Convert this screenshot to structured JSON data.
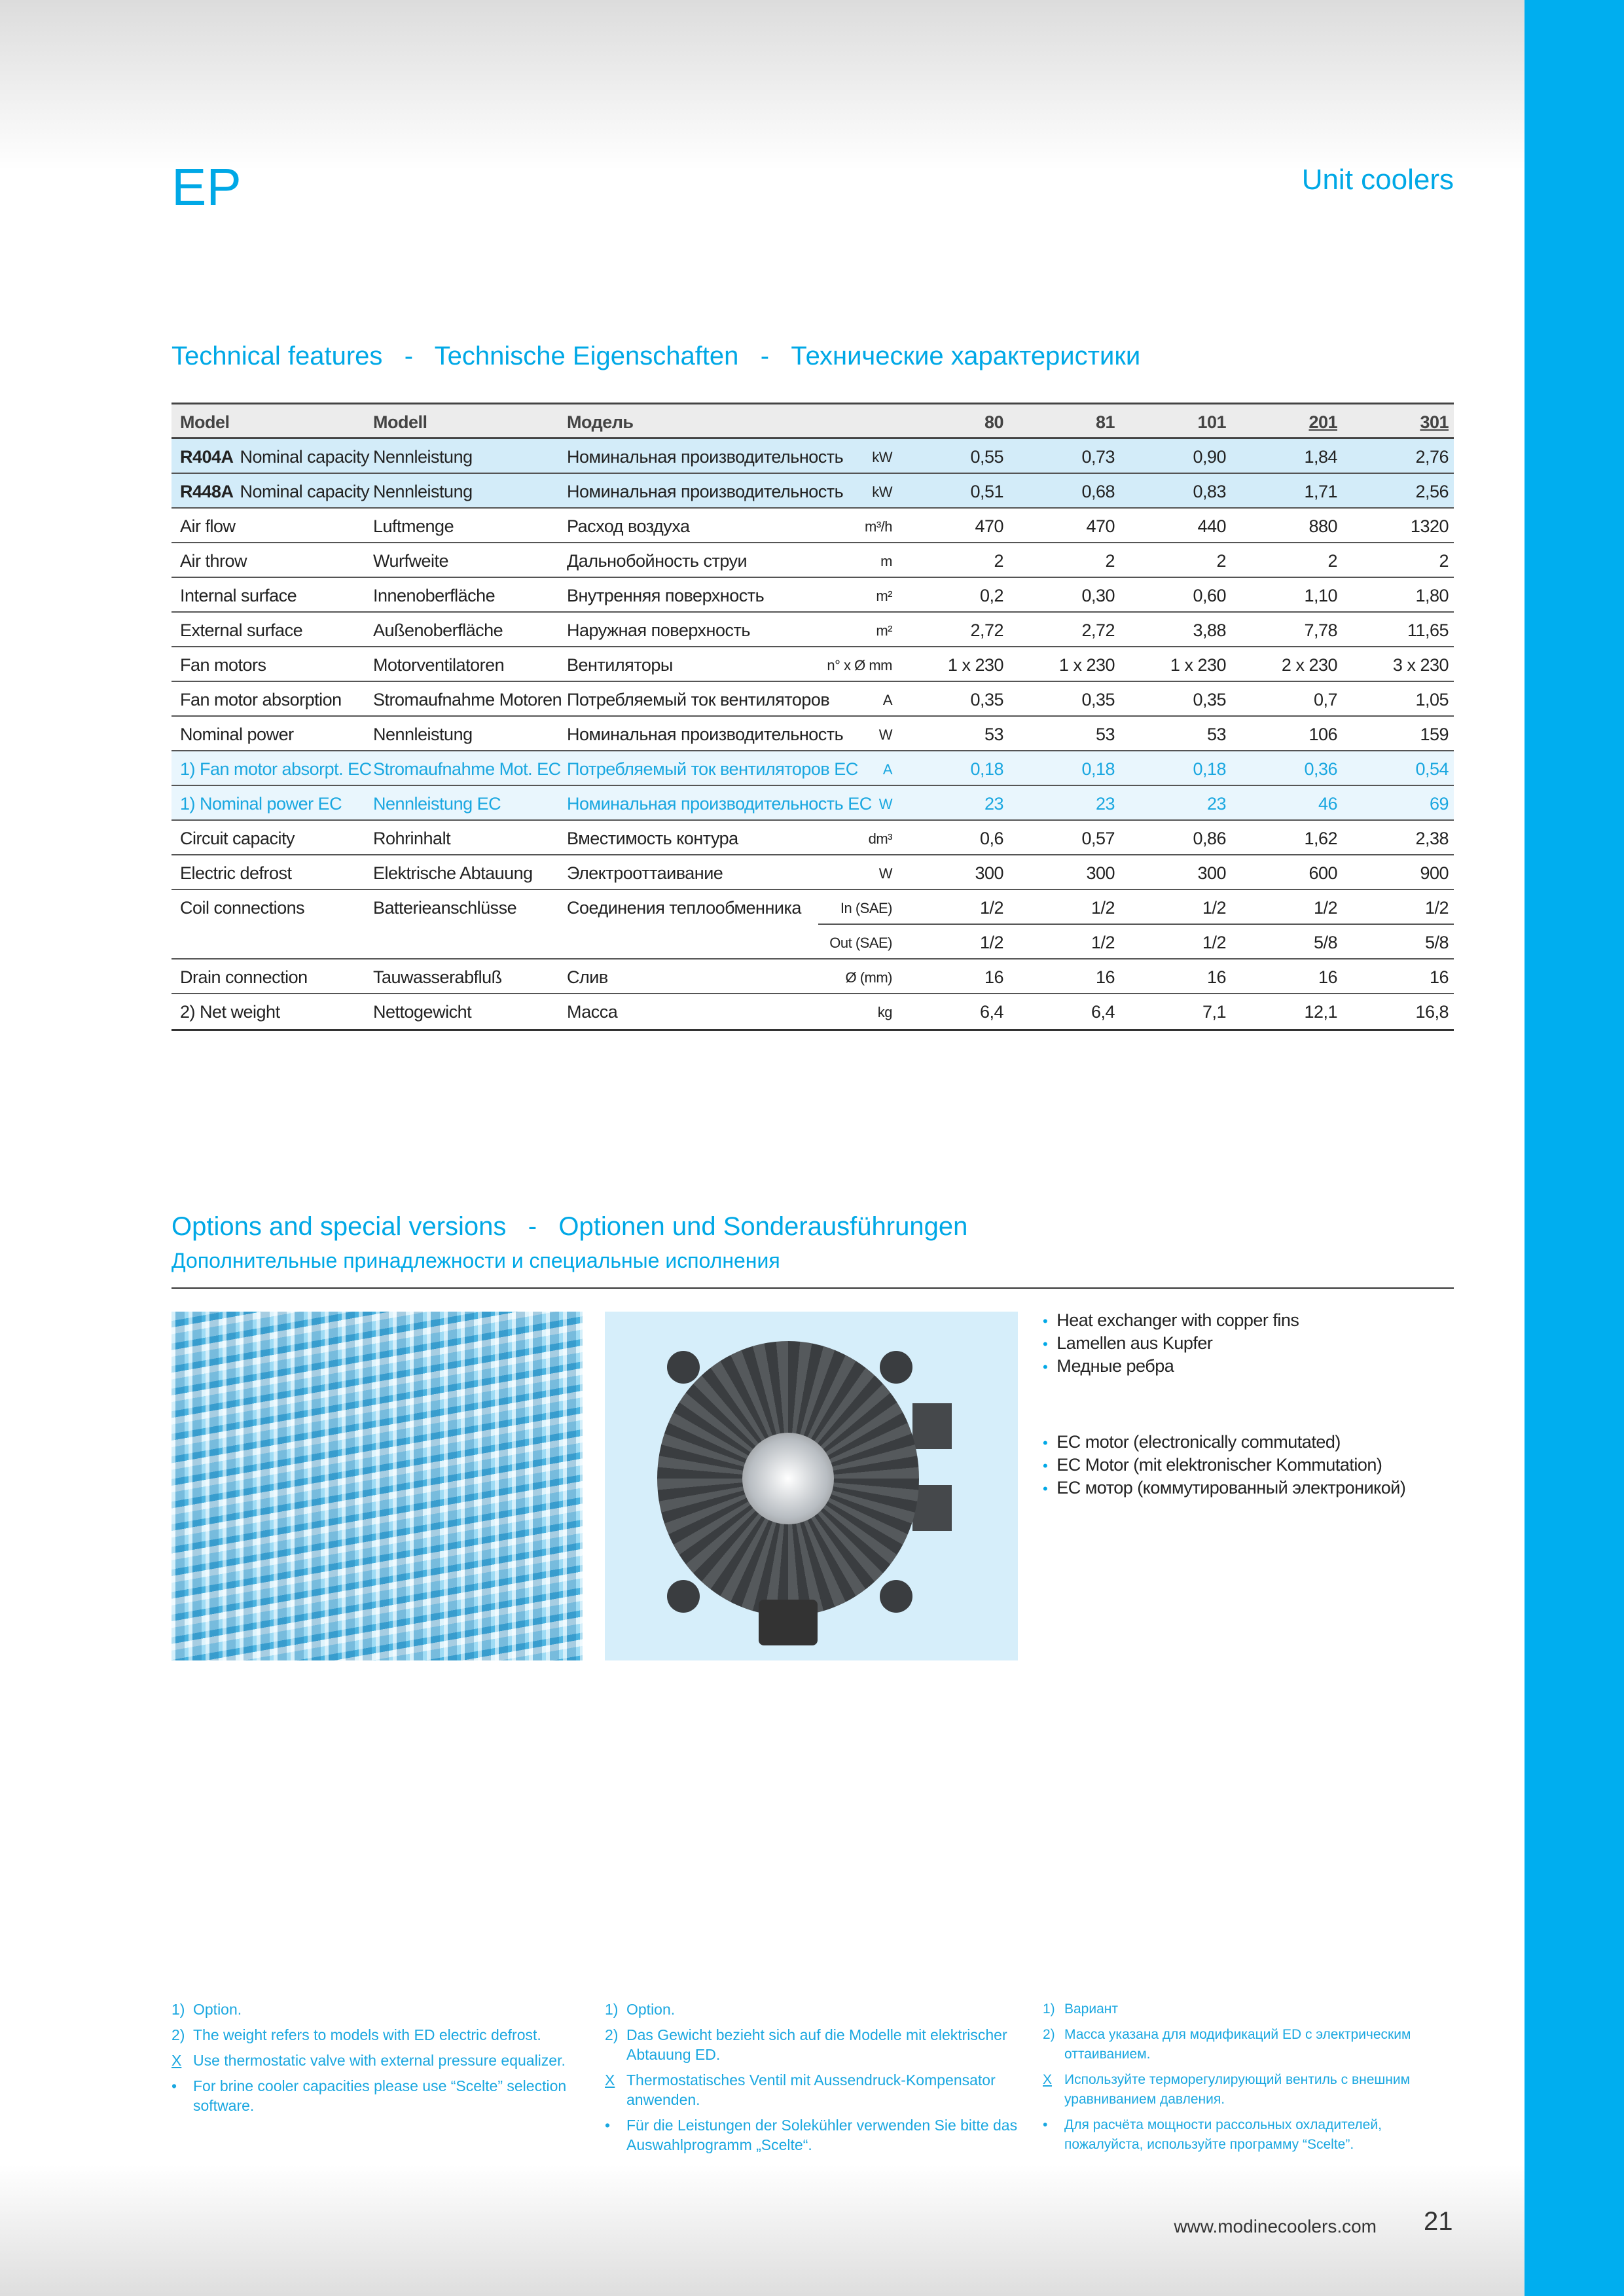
{
  "header": {
    "series": "EP",
    "category": "Unit coolers"
  },
  "technical": {
    "title": "Technical features   -   Technische Eigenschaften   -   Технические характеристики",
    "columns": [
      "Model",
      "Modell",
      "Модель",
      "",
      "80",
      "81",
      "101",
      "201",
      "301"
    ],
    "rows": [
      {
        "style": "cap",
        "bold": "R404A",
        "en": "Nominal capacity",
        "de": "Nennleistung",
        "ru": "Номинальная производительность",
        "unit": "kW",
        "values": [
          "0,55",
          "0,73",
          "0,90",
          "1,84",
          "2,76"
        ]
      },
      {
        "style": "cap",
        "bold": "R448A",
        "en": "Nominal capacity",
        "de": "Nennleistung",
        "ru": "Номинальная производительность",
        "unit": "kW",
        "values": [
          "0,51",
          "0,68",
          "0,83",
          "1,71",
          "2,56"
        ]
      },
      {
        "style": "",
        "en": "Air flow",
        "de": "Luftmenge",
        "ru": "Расход воздуха",
        "unit": "m³/h",
        "values": [
          "470",
          "470",
          "440",
          "880",
          "1320"
        ]
      },
      {
        "style": "",
        "en": "Air throw",
        "de": "Wurfweite",
        "ru": "Дальнобойность струи",
        "unit": "m",
        "values": [
          "2",
          "2",
          "2",
          "2",
          "2"
        ]
      },
      {
        "style": "",
        "en": "Internal surface",
        "de": "Innenoberfläche",
        "ru": "Внутренняя поверхность",
        "unit": "m²",
        "values": [
          "0,2",
          "0,30",
          "0,60",
          "1,10",
          "1,80"
        ]
      },
      {
        "style": "",
        "en": "External surface",
        "de": "Außenoberfläche",
        "ru": "Наружная поверхность",
        "unit": "m²",
        "values": [
          "2,72",
          "2,72",
          "3,88",
          "7,78",
          "11,65"
        ]
      },
      {
        "style": "",
        "en": "Fan motors",
        "de": "Motorventilatoren",
        "ru": "Вентиляторы",
        "unit": "n° x Ø mm",
        "values": [
          "1 x 230",
          "1 x 230",
          "1 x 230",
          "2 x 230",
          "3 x 230"
        ]
      },
      {
        "style": "",
        "en": "Fan motor absorption",
        "de": "Stromaufnahme Motoren",
        "ru": "Потребляемый ток вентиляторов",
        "unit": "A",
        "values": [
          "0,35",
          "0,35",
          "0,35",
          "0,7",
          "1,05"
        ]
      },
      {
        "style": "",
        "en": "Nominal power",
        "de": "Nennleistung",
        "ru": "Номинальная производительность",
        "unit": "W",
        "values": [
          "53",
          "53",
          "53",
          "106",
          "159"
        ]
      },
      {
        "style": "ec",
        "en": "1) Fan motor absorpt. EC",
        "de": "Stromaufnahme Mot. EC",
        "ru": "Потребляемый ток вентиляторов EC",
        "unit": "A",
        "values": [
          "0,18",
          "0,18",
          "0,18",
          "0,36",
          "0,54"
        ]
      },
      {
        "style": "ec",
        "en": "1) Nominal power EC",
        "de": "Nennleistung EC",
        "ru": "Номинальная производительность EC",
        "unit": "W",
        "values": [
          "23",
          "23",
          "23",
          "46",
          "69"
        ]
      },
      {
        "style": "",
        "en": "Circuit capacity",
        "de": "Rohrinhalt",
        "ru": "Вместимость контура",
        "unit": "dm³",
        "values": [
          "0,6",
          "0,57",
          "0,86",
          "1,62",
          "2,38"
        ]
      },
      {
        "style": "",
        "en": "Electric defrost",
        "de": "Elektrische Abtauung",
        "ru": "Электрооттаивание",
        "unit": "W",
        "values": [
          "300",
          "300",
          "300",
          "600",
          "900"
        ]
      },
      {
        "style": "nosep",
        "en": "Coil connections",
        "de": "Batterieanschlüsse",
        "ru": "Соединения теплообменника",
        "unit": "In (SAE)",
        "values": [
          "1/2",
          "1/2",
          "1/2",
          "1/2",
          "1/2"
        ]
      },
      {
        "style": "sub",
        "en": "",
        "de": "",
        "ru": "",
        "unit": "Out (SAE)",
        "values": [
          "1/2",
          "1/2",
          "1/2",
          "5/8",
          "5/8"
        ]
      },
      {
        "style": "",
        "en": "Drain connection",
        "de": "Tauwasserabfluß",
        "ru": "Слив",
        "unit": "Ø (mm)",
        "values": [
          "16",
          "16",
          "16",
          "16",
          "16"
        ]
      },
      {
        "style": "",
        "en": "2) Net weight",
        "de": "Nettogewicht",
        "ru": "Масса",
        "unit": "kg",
        "values": [
          "6,4",
          "6,4",
          "7,1",
          "12,1",
          "16,8"
        ]
      }
    ]
  },
  "options": {
    "title": "Options and special versions   -   Optionen und Sonderausführungen",
    "subtitle": "Дополнительные принадлежности и специальные исполнения",
    "group1": [
      "Heat exchanger with copper fins",
      "Lamellen aus Kupfer",
      "Медные ребра"
    ],
    "group2": [
      "EC motor (electronically commutated)",
      "EC Motor (mit elektronischer Kommutation)",
      "EC мотор (коммутированный электроникой)"
    ]
  },
  "footnotes": [
    [
      {
        "m": "1)",
        "t": "Option."
      },
      {
        "m": "2)",
        "t": "The weight refers to models with ED electric defrost."
      },
      {
        "m": "X",
        "t": "Use thermostatic valve with external pressure equalizer."
      },
      {
        "m": "•",
        "t": "For brine cooler capacities please use “Scelte” selection software."
      }
    ],
    [
      {
        "m": "1)",
        "t": "Option."
      },
      {
        "m": "2)",
        "t": "Das Gewicht bezieht sich auf die Modelle mit elektrischer Abtauung ED."
      },
      {
        "m": "X",
        "t": "Thermostatisches Ventil mit Aussendruck-Kompensator anwenden."
      },
      {
        "m": "•",
        "t": "Für die Leistungen der Solekühler verwenden Sie bitte das Auswahlprogramm „Scelte“."
      }
    ],
    [
      {
        "m": "1)",
        "t": "Вариант"
      },
      {
        "m": "2)",
        "t": "Масса указана для модификаций ED с электрическим оттаиванием."
      },
      {
        "m": "X",
        "t": "Используйте терморегулирующий вентиль с внешним уравниванием давления."
      },
      {
        "m": "•",
        "t": "Для расчёта мощности рассольных охладителей, пожалуйста, используйте программу “Scelte”."
      }
    ]
  ],
  "footer": {
    "url": "www.modinecoolers.com",
    "page": "21"
  }
}
